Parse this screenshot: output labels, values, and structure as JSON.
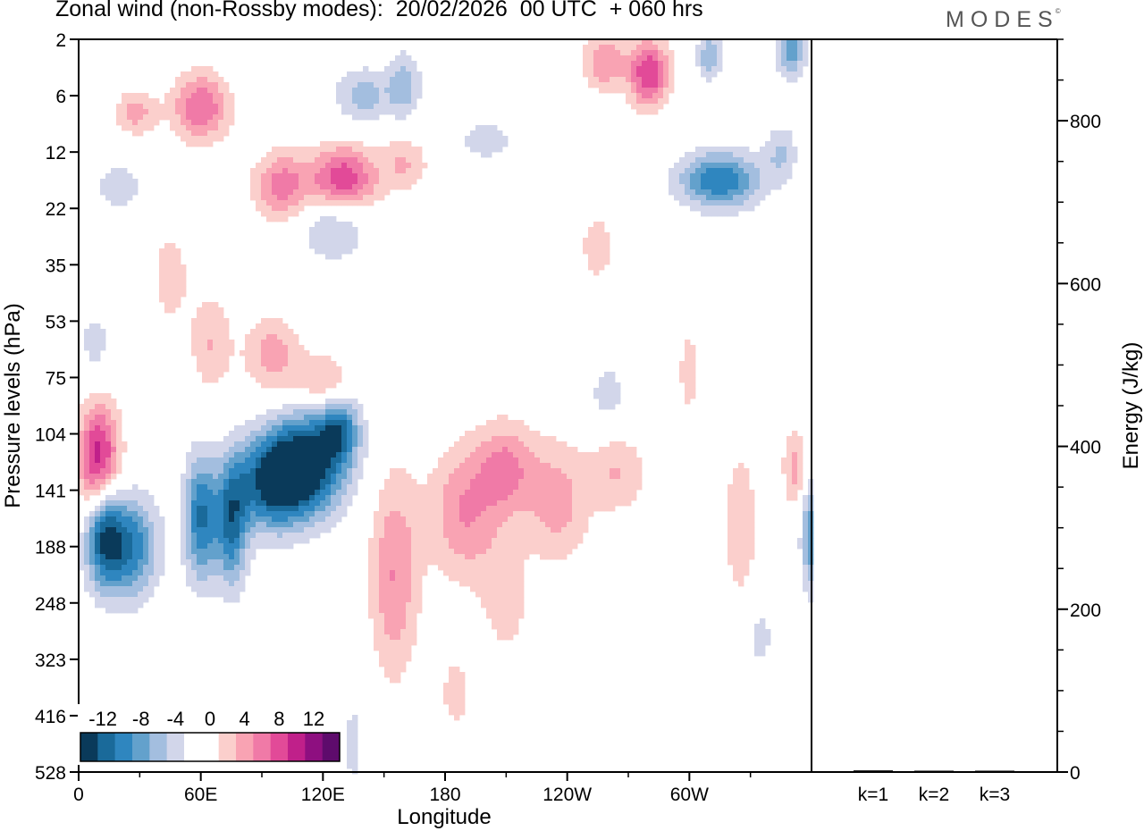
{
  "title": "Zonal wind (non-Rossby modes):  20/02/2026  00 UTC  + 060 hrs",
  "logo": "MODES",
  "logo_mark": "©",
  "chart_data": [
    {
      "type": "heatmap",
      "title": "Zonal wind (non-Rossby modes)",
      "xlabel": "Longitude",
      "ylabel": "Pressure levels (hPa)",
      "x_ticks": [
        "0",
        "60E",
        "120E",
        "180",
        "120W",
        "60W"
      ],
      "x_tick_values": [
        0,
        60,
        120,
        180,
        240,
        300
      ],
      "xlim": [
        0,
        360
      ],
      "y_ticks": [
        "2",
        "6",
        "12",
        "22",
        "35",
        "53",
        "75",
        "104",
        "141",
        "188",
        "248",
        "323",
        "416",
        "528"
      ],
      "colorbar": {
        "labels": [
          "-12",
          "-8",
          "-4",
          "0",
          "4",
          "8",
          "12"
        ],
        "colors": [
          "#0a3a5a",
          "#1a6a9a",
          "#2f86bf",
          "#63a1cc",
          "#a3bedf",
          "#d2d6ea",
          "#ffffff",
          "#ffffff",
          "#fbcfcc",
          "#f9a3b3",
          "#f07aa7",
          "#e24a98",
          "#c0208a",
          "#8e0f80",
          "#5e0b6c"
        ]
      },
      "blobs": [
        {
          "lon": 10,
          "lev": 7.5,
          "w": 10,
          "h": 1.0,
          "v": 12
        },
        {
          "lon": 22,
          "lev": 9.0,
          "w": 16,
          "h": 0.9,
          "v": -11
        },
        {
          "lon": 12,
          "lev": 8.6,
          "w": 8,
          "h": 0.9,
          "v": -8
        },
        {
          "lon": 60,
          "lev": 8.5,
          "w": 8,
          "h": 1.1,
          "v": -10
        },
        {
          "lon": 75,
          "lev": 8.6,
          "w": 8,
          "h": 1.1,
          "v": -10
        },
        {
          "lon": 95,
          "lev": 7.9,
          "w": 18,
          "h": 0.8,
          "v": -11
        },
        {
          "lon": 112,
          "lev": 7.5,
          "w": 20,
          "h": 0.9,
          "v": -13
        },
        {
          "lon": 128,
          "lev": 6.9,
          "w": 10,
          "h": 0.6,
          "v": -8
        },
        {
          "lon": 155,
          "lev": 9.5,
          "w": 12,
          "h": 1.8,
          "v": 6
        },
        {
          "lon": 190,
          "lev": 8.4,
          "w": 18,
          "h": 1.2,
          "v": 6
        },
        {
          "lon": 210,
          "lev": 7.6,
          "w": 14,
          "h": 0.8,
          "v": 6
        },
        {
          "lon": 235,
          "lev": 8.2,
          "w": 16,
          "h": 1.1,
          "v": 5
        },
        {
          "lon": 265,
          "lev": 7.7,
          "w": 14,
          "h": 0.7,
          "v": 4
        },
        {
          "lon": 325,
          "lev": 8.6,
          "w": 8,
          "h": 1.3,
          "v": 4
        },
        {
          "lon": 352,
          "lev": 7.6,
          "w": 6,
          "h": 0.7,
          "v": 5
        },
        {
          "lon": 360,
          "lev": 8.8,
          "w": 5,
          "h": 1.0,
          "v": -8
        },
        {
          "lon": 60,
          "lev": 1.2,
          "w": 14,
          "h": 0.6,
          "v": 8
        },
        {
          "lon": 28,
          "lev": 1.3,
          "w": 10,
          "h": 0.4,
          "v": 5
        },
        {
          "lon": 130,
          "lev": 2.5,
          "w": 16,
          "h": 0.6,
          "v": 10
        },
        {
          "lon": 100,
          "lev": 2.6,
          "w": 14,
          "h": 0.6,
          "v": 7
        },
        {
          "lon": 160,
          "lev": 2.2,
          "w": 12,
          "h": 0.5,
          "v": 4
        },
        {
          "lon": 280,
          "lev": 0.6,
          "w": 10,
          "h": 0.6,
          "v": 10
        },
        {
          "lon": 258,
          "lev": 0.4,
          "w": 10,
          "h": 0.5,
          "v": 6
        },
        {
          "lon": 315,
          "lev": 2.5,
          "w": 20,
          "h": 0.5,
          "v": -10
        },
        {
          "lon": 345,
          "lev": 2.0,
          "w": 8,
          "h": 0.5,
          "v": -4
        },
        {
          "lon": 350,
          "lev": 0.2,
          "w": 7,
          "h": 0.5,
          "v": -7
        },
        {
          "lon": 310,
          "lev": 0.3,
          "w": 6,
          "h": 0.4,
          "v": -6
        },
        {
          "lon": 140,
          "lev": 1.0,
          "w": 14,
          "h": 0.5,
          "v": -5
        },
        {
          "lon": 160,
          "lev": 0.8,
          "w": 8,
          "h": 0.6,
          "v": -5
        },
        {
          "lon": 125,
          "lev": 3.3,
          "w": 16,
          "h": 0.6,
          "v": -5
        },
        {
          "lon": 95,
          "lev": 5.6,
          "w": 14,
          "h": 0.7,
          "v": 5
        },
        {
          "lon": 120,
          "lev": 6.1,
          "w": 14,
          "h": 0.5,
          "v": 5
        },
        {
          "lon": 65,
          "lev": 5.4,
          "w": 10,
          "h": 0.9,
          "v": 4
        },
        {
          "lon": 255,
          "lev": 3.7,
          "w": 10,
          "h": 0.7,
          "v": 3
        },
        {
          "lon": 260,
          "lev": 6.3,
          "w": 10,
          "h": 0.6,
          "v": -3
        },
        {
          "lon": 300,
          "lev": 5.9,
          "w": 6,
          "h": 0.9,
          "v": 3
        },
        {
          "lon": 185,
          "lev": 11.6,
          "w": 8,
          "h": 0.7,
          "v": 3
        },
        {
          "lon": 210,
          "lev": 10.0,
          "w": 12,
          "h": 1.0,
          "v": 3
        },
        {
          "lon": 135,
          "lev": 12.5,
          "w": 5,
          "h": 0.9,
          "v": -3
        },
        {
          "lon": 335,
          "lev": 10.6,
          "w": 6,
          "h": 0.6,
          "v": -3
        },
        {
          "lon": 20,
          "lev": 2.6,
          "w": 14,
          "h": 0.5,
          "v": -3
        },
        {
          "lon": 45,
          "lev": 4.2,
          "w": 10,
          "h": 1.0,
          "v": 3
        },
        {
          "lon": 8,
          "lev": 5.4,
          "w": 8,
          "h": 0.6,
          "v": -3
        },
        {
          "lon": 200,
          "lev": 1.8,
          "w": 16,
          "h": 0.4,
          "v": -3
        }
      ]
    },
    {
      "type": "bar",
      "categories": [
        "k=1",
        "k=2",
        "k=3"
      ],
      "values": [
        2,
        1.5,
        1
      ],
      "ylabel": "Energy (J/kg)",
      "y_ticks": [
        "0",
        "200",
        "400",
        "600",
        "800"
      ],
      "ylim": [
        0,
        900
      ]
    }
  ]
}
